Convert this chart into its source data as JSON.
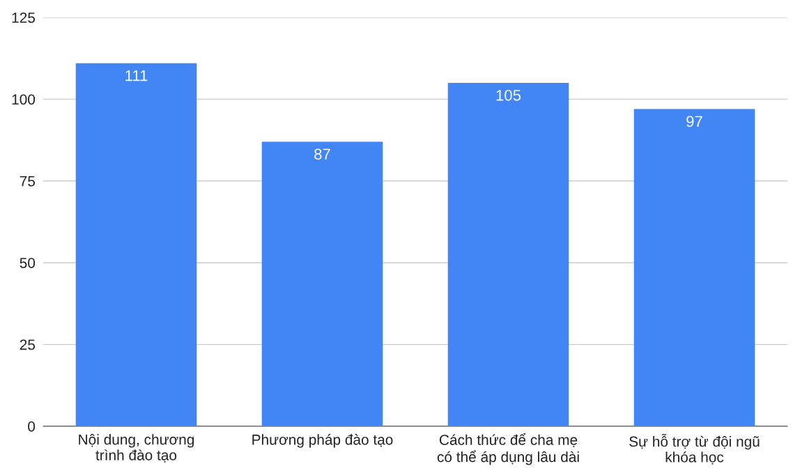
{
  "chart_data": {
    "type": "bar",
    "categories": [
      "Nội dung, chương\ntrình đào tạo",
      "Phương pháp đào tạo",
      "Cách thức để cha mẹ\ncó thể áp dụng lâu dài",
      "Sự hỗ trợ từ đội ngũ\nkhóa học"
    ],
    "values": [
      111,
      87,
      105,
      97
    ],
    "color": "#4285f4",
    "ylim": [
      0,
      125
    ],
    "yticks": [
      0,
      25,
      50,
      75,
      100,
      125
    ],
    "grid": "y",
    "data_labels": true,
    "legend": false
  }
}
